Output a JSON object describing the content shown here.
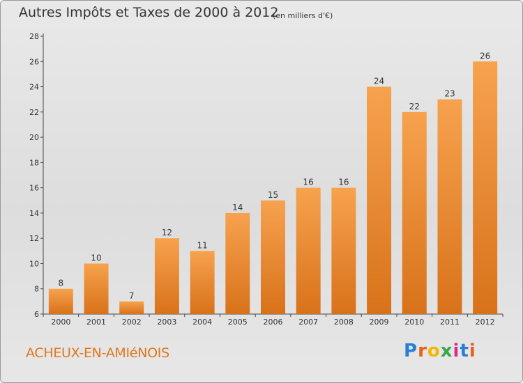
{
  "header": {
    "title": "Autres Impôts et Taxes de 2000 à 2012",
    "subtitle": "(en milliers d'€)"
  },
  "footer": {
    "commune": "ACHEUX-EN-AMIéNOIS",
    "logo_text": "Proxiti"
  },
  "colors": {
    "bar_top": "#f7a24e",
    "bar_bottom": "#d8721a",
    "logo": [
      "#2a7fd4",
      "#e8601c",
      "#f2b705",
      "#3aa64a",
      "#d62c8c",
      "#2a7fd4",
      "#e8601c"
    ]
  },
  "chart_data": {
    "type": "bar",
    "categories": [
      "2000",
      "2001",
      "2002",
      "2003",
      "2004",
      "2005",
      "2006",
      "2007",
      "2008",
      "2009",
      "2010",
      "2011",
      "2012"
    ],
    "values": [
      8,
      10,
      7,
      12,
      11,
      14,
      15,
      16,
      16,
      24,
      22,
      23,
      26
    ],
    "title": "Autres Impôts et Taxes de 2000 à 2012",
    "subtitle": "(en milliers d'€)",
    "xlabel": "",
    "ylabel": "",
    "ylim": [
      6,
      28
    ],
    "yticks": [
      6,
      8,
      10,
      12,
      14,
      16,
      18,
      20,
      22,
      24,
      26,
      28
    ],
    "grid": false,
    "legend": "none"
  }
}
